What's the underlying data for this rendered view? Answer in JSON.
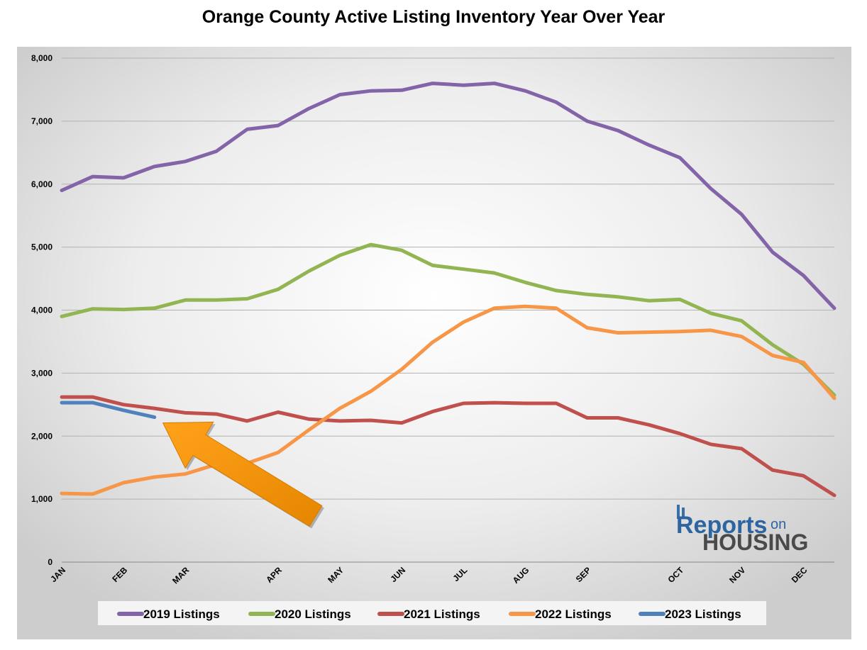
{
  "chart_data": {
    "type": "line",
    "title": "Orange County Active Listing Inventory Year Over Year",
    "ylim": [
      0,
      8000
    ],
    "yticks": [
      0,
      1000,
      2000,
      3000,
      4000,
      5000,
      6000,
      7000,
      8000
    ],
    "ytick_labels": [
      "0",
      "1,000",
      "2,000",
      "3,000",
      "4,000",
      "5,000",
      "6,000",
      "7,000",
      "8,000"
    ],
    "month_labels": [
      "JAN",
      "FEB",
      "MAR",
      "APR",
      "MAY",
      "JUN",
      "JUL",
      "AUG",
      "SEP",
      "OCT",
      "NOV",
      "DEC"
    ],
    "month_positions": [
      0,
      2,
      4,
      7,
      9,
      11,
      13,
      15,
      17,
      20,
      22,
      24
    ],
    "x_range": [
      0,
      25
    ],
    "grid": true,
    "legend_position": "bottom",
    "series": [
      {
        "name": "2019 Listings",
        "color": "#8464a8",
        "values": [
          5900,
          6120,
          6100,
          6280,
          6360,
          6520,
          6870,
          6930,
          7200,
          7420,
          7480,
          7490,
          7600,
          7570,
          7600,
          7480,
          7300,
          7000,
          6850,
          6620,
          6420,
          5930,
          5520,
          4920,
          4550,
          4030
        ]
      },
      {
        "name": "2020 Listings",
        "color": "#92b552",
        "values": [
          3900,
          4020,
          4010,
          4030,
          4160,
          4160,
          4180,
          4330,
          4620,
          4870,
          5040,
          4950,
          4710,
          4650,
          4590,
          4440,
          4310,
          4250,
          4210,
          4150,
          4170,
          3950,
          3830,
          3450,
          3140,
          2650
        ]
      },
      {
        "name": "2021 Listings",
        "color": "#c0504d",
        "values": [
          2620,
          2620,
          2500,
          2440,
          2370,
          2350,
          2240,
          2380,
          2270,
          2240,
          2250,
          2210,
          2390,
          2520,
          2530,
          2520,
          2520,
          2290,
          2290,
          2180,
          2040,
          1870,
          1800,
          1460,
          1370,
          1060
        ]
      },
      {
        "name": "2022 Listings",
        "color": "#f79646",
        "values": [
          1090,
          1080,
          1260,
          1350,
          1400,
          1550,
          1570,
          1740,
          2100,
          2440,
          2710,
          3060,
          3490,
          3810,
          4030,
          4060,
          4030,
          3720,
          3640,
          3650,
          3660,
          3680,
          3580,
          3280,
          3170,
          2600
        ]
      },
      {
        "name": "2023 Listings",
        "color": "#4f81bd",
        "values": [
          2530,
          2530,
          2410,
          2300
        ]
      }
    ],
    "annotations": [
      {
        "type": "arrow",
        "color": "#f29100",
        "points_to_series": "2023 Listings",
        "points_to_index": 3
      }
    ]
  },
  "logo": {
    "line1": "Reports",
    "small": "on",
    "line2": "HOUSING"
  }
}
